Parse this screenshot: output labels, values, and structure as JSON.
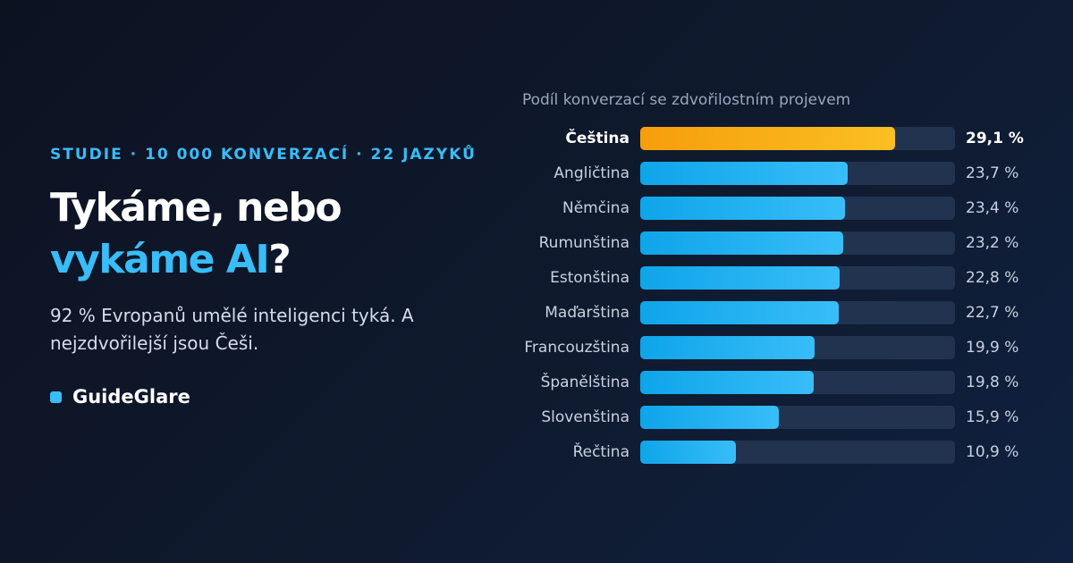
{
  "header": {
    "eyebrow": "STUDIE · 10 000 KONVERZACÍ · 22 JAZYKŮ",
    "headline_line1": "Tykáme, nebo",
    "headline_accent": "vykáme AI",
    "headline_end": "?",
    "lead": "92 % Evropanů umělé inteligenci tyká. A nejzdvořilejší jsou Češi."
  },
  "brand": {
    "name": "GuideGlare",
    "icon": "square-dot-icon"
  },
  "colors": {
    "accent": "#38bdf8",
    "highlight": "#fbbf24",
    "track": "#22334f",
    "background": "#0f1a2e"
  },
  "chart_data": {
    "type": "bar",
    "orientation": "horizontal",
    "title": "Podíl konverzací se zdvořilostním projevem",
    "xlim": [
      0,
      36
    ],
    "highlight": "Čeština",
    "categories": [
      "Čeština",
      "Angličtina",
      "Němčina",
      "Rumunština",
      "Estonština",
      "Maďarština",
      "Francouzština",
      "Španělština",
      "Slovenština",
      "Řečtina"
    ],
    "values": [
      29.1,
      23.7,
      23.4,
      23.2,
      22.8,
      22.7,
      19.9,
      19.8,
      15.9,
      10.9
    ],
    "value_labels": [
      "29,1 %",
      "23,7 %",
      "23,4 %",
      "23,2 %",
      "22,8 %",
      "22,7 %",
      "19,9 %",
      "19,8 %",
      "15,9 %",
      "10,9 %"
    ]
  }
}
